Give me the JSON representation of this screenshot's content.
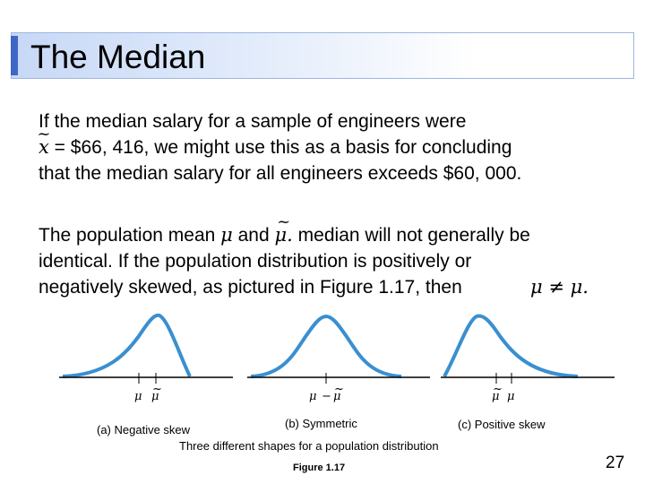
{
  "slide": {
    "title": "The Median",
    "paragraph1": {
      "line1": "If the median salary for a sample of engineers were",
      "line2_symbol": "x",
      "line2_text": " = $66, 416, we might use this as a basis for concluding",
      "line3": "that the median salary for all engineers exceeds $60, 000."
    },
    "paragraph2": {
      "line1_a": "The population mean ",
      "mu": "μ",
      "line1_b": " and ",
      "mu_tilde": "μ.",
      "line1_c": " median will not generally be",
      "line2": "identical. If the population distribution is positively or",
      "line3": "negatively skewed, as pictured in Figure 1.17, then",
      "inequality": "μ ≠ μ."
    },
    "figure": {
      "panels": [
        {
          "caption": "(a) Negative skew",
          "axis_label_1": "μ",
          "axis_label_2": "μ"
        },
        {
          "caption": "(b) Symmetric",
          "axis_label_1": "μ",
          "axis_label_sep": "−",
          "axis_label_2": "μ"
        },
        {
          "caption": "(c) Positive skew",
          "axis_label_1": "μ",
          "axis_label_2": "μ"
        }
      ],
      "description": "Three different shapes for a population distribution",
      "label": "Figure 1.17"
    },
    "page_number": "27",
    "colors": {
      "curve": "#3a8fd0",
      "axis": "#000000",
      "title_accent": "#3f67c7"
    }
  }
}
